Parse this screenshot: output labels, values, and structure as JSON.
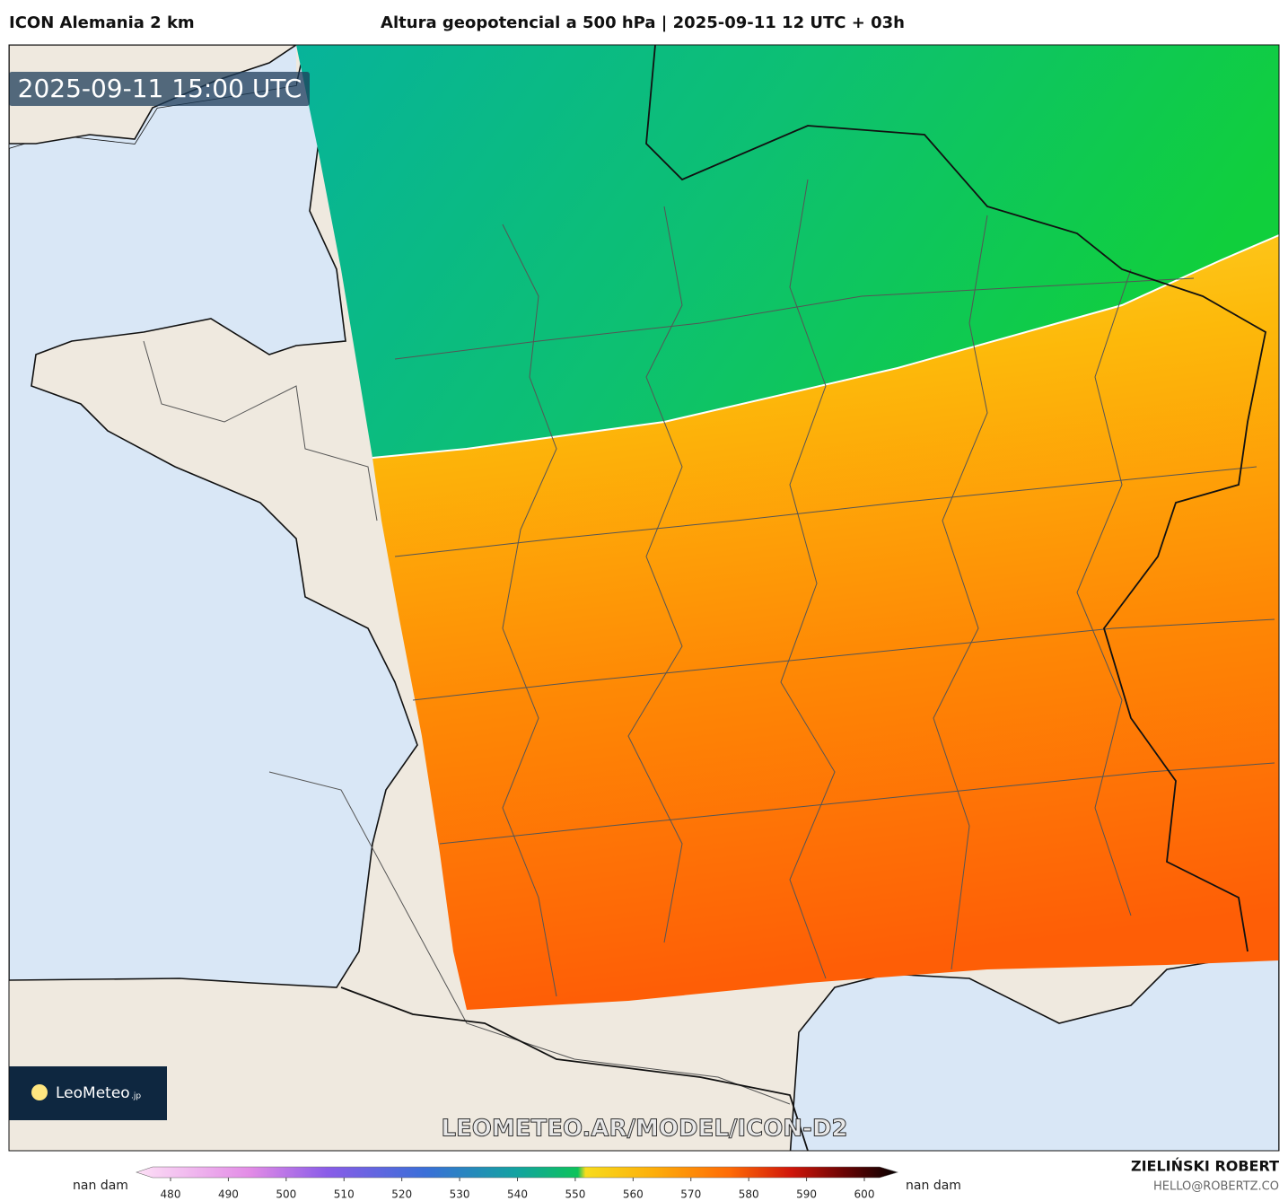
{
  "header": {
    "model": "ICON Alemania 2 km",
    "title": "Altura geopotencial a 500 hPa | 2025-09-11 12 UTC + 03h"
  },
  "map": {
    "timestamp": "2025-09-11 15:00 UTC",
    "watermark": "LEOMETEO.AR/MODEL/ICON-D2",
    "logo": "LeoMeteo",
    "logo_suffix": ".jp"
  },
  "colorbar": {
    "low_label": "nan dam",
    "high_label": "nan dam",
    "range": [
      480,
      600
    ],
    "ticks": [
      480,
      490,
      500,
      510,
      520,
      530,
      540,
      550,
      560,
      570,
      580,
      590,
      600
    ]
  },
  "footer": {
    "author": "ZIELIŃSKI ROBERT",
    "email": "HELLO@ROBERTZ.CO"
  }
}
